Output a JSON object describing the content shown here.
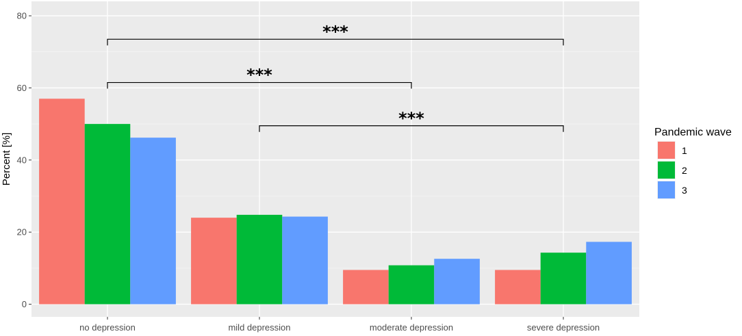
{
  "chart_data": {
    "type": "bar",
    "ylabel": "Percent [%]",
    "xlabel": "",
    "ylim": [
      -3.5,
      84
    ],
    "yticks": [
      0,
      20,
      40,
      60,
      80
    ],
    "categories": [
      "no depression",
      "mild depression",
      "moderate depression",
      "severe depression"
    ],
    "series": [
      {
        "name": "1",
        "color": "#F8766D",
        "values": [
          57.0,
          24.0,
          9.5,
          9.5
        ]
      },
      {
        "name": "2",
        "color": "#00BA38",
        "values": [
          50.0,
          24.8,
          10.8,
          14.3
        ]
      },
      {
        "name": "3",
        "color": "#619CFF",
        "values": [
          46.2,
          24.3,
          12.6,
          17.3
        ]
      }
    ],
    "legend": {
      "title": "Pandemic wave",
      "position": "right"
    },
    "grid": true,
    "significance": [
      {
        "from": "no depression",
        "to": "severe depression",
        "y": 73.5,
        "label": "***"
      },
      {
        "from": "no depression",
        "to": "moderate depression",
        "y": 61.5,
        "label": "***"
      },
      {
        "from": "mild depression",
        "to": "severe depression",
        "y": 49.5,
        "label": "***"
      }
    ]
  }
}
